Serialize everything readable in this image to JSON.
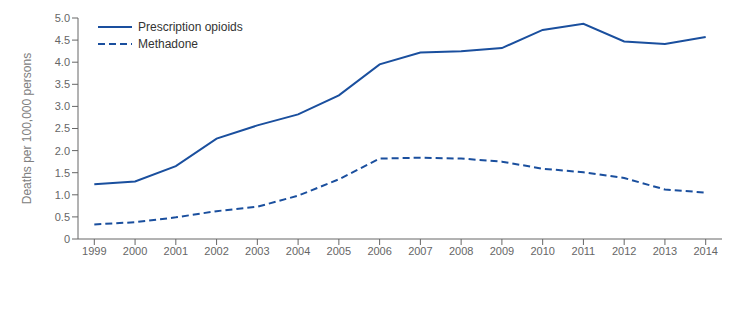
{
  "chart_data": {
    "type": "line",
    "x": [
      1999,
      2000,
      2001,
      2002,
      2003,
      2004,
      2005,
      2006,
      2007,
      2008,
      2009,
      2010,
      2011,
      2012,
      2013,
      2014
    ],
    "series": [
      {
        "name": "Prescription opioids",
        "color": "#1a4f9e",
        "line_style": "solid",
        "values": [
          1.24,
          1.3,
          1.65,
          2.27,
          2.57,
          2.82,
          3.25,
          3.95,
          4.22,
          4.25,
          4.32,
          4.73,
          4.87,
          4.47,
          4.41,
          4.57
        ]
      },
      {
        "name": "Methadone",
        "color": "#1a4f9e",
        "line_style": "dashed",
        "values": [
          0.33,
          0.38,
          0.49,
          0.63,
          0.73,
          0.98,
          1.35,
          1.82,
          1.84,
          1.82,
          1.75,
          1.59,
          1.51,
          1.38,
          1.12,
          1.05
        ]
      }
    ],
    "ylabel": "Deaths per 100,000 persons",
    "xlim": [
      1998.6,
      2014.4
    ],
    "xticks": [
      1999,
      2000,
      2001,
      2002,
      2003,
      2004,
      2005,
      2006,
      2007,
      2008,
      2009,
      2010,
      2011,
      2012,
      2013,
      2014
    ],
    "ylim": [
      0,
      5.0
    ],
    "yticks": [
      0,
      0.5,
      {
        "value": 1,
        "label": "1.0"
      },
      1.5,
      {
        "value": 2,
        "label": "2.0"
      },
      2.5,
      {
        "value": 3,
        "label": "3.0"
      },
      3.5,
      {
        "value": 4,
        "label": "4.0"
      },
      4.5,
      {
        "value": 5,
        "label": "5.0"
      }
    ],
    "grid": false,
    "legend": "upper left"
  }
}
